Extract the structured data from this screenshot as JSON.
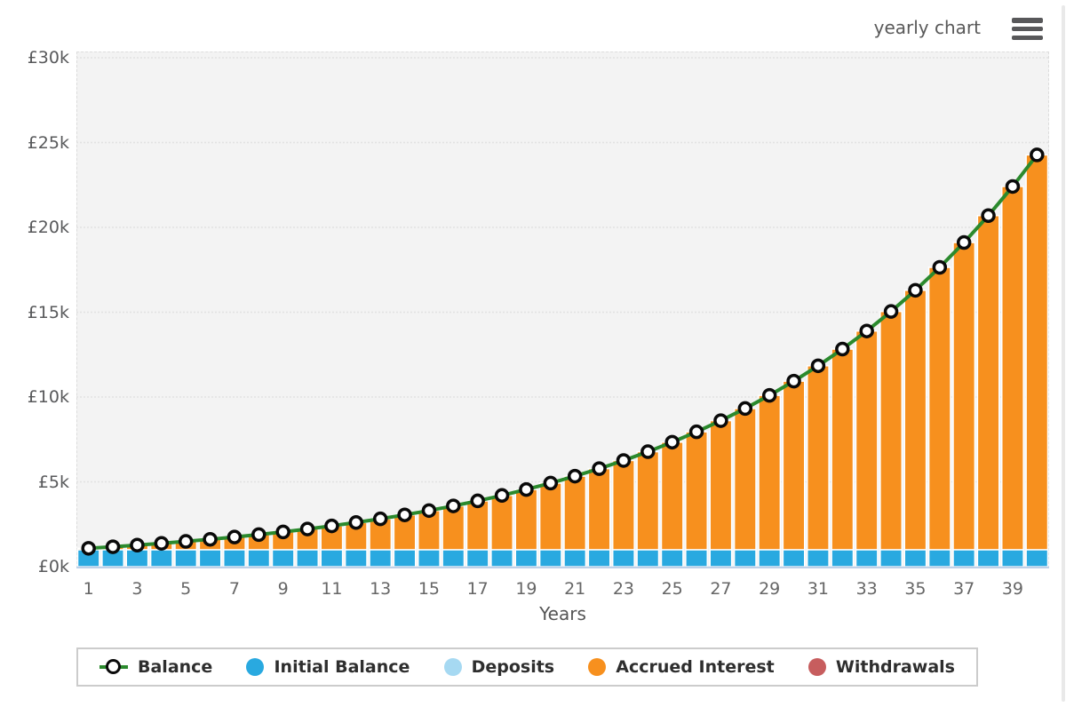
{
  "header": {
    "title": "yearly chart",
    "menu_icon": "hamburger-icon"
  },
  "colors": {
    "plot_background": "#f3f3f3",
    "grid_line": "#e2e2e2",
    "baseline": "#bed1e8",
    "bar_gap": "#ffffff",
    "initial_balance": "#29a9e0",
    "deposits": "#a6d9f2",
    "accrued_interest": "#f7901e",
    "withdrawals": "#c75d5e",
    "balance_line": "#2b8a2d",
    "marker_ring": "#0a0a0a",
    "marker_fill": "#ffffff"
  },
  "chart_data": {
    "type": "bar",
    "subtype": "stacked-columns-with-line",
    "title": "yearly chart",
    "xlabel": "Years",
    "ylabel": "",
    "ylim": [
      0,
      30000
    ],
    "grid": "horizontal-dashed",
    "legend_position": "bottom",
    "y_ticks": [
      0,
      5000,
      10000,
      15000,
      20000,
      25000,
      30000
    ],
    "y_tick_labels": [
      "£0k",
      "£5k",
      "£10k",
      "£15k",
      "£20k",
      "£25k",
      "£30k"
    ],
    "categories": [
      1,
      2,
      3,
      4,
      5,
      6,
      7,
      8,
      9,
      10,
      11,
      12,
      13,
      14,
      15,
      16,
      17,
      18,
      19,
      20,
      21,
      22,
      23,
      24,
      25,
      26,
      27,
      28,
      29,
      30,
      31,
      32,
      33,
      34,
      35,
      36,
      37,
      38,
      39,
      40
    ],
    "x_tick_labels": [
      "1",
      "3",
      "5",
      "7",
      "9",
      "11",
      "13",
      "15",
      "17",
      "19",
      "21",
      "23",
      "25",
      "27",
      "29",
      "31",
      "33",
      "35",
      "37",
      "39"
    ],
    "series": [
      {
        "name": "Initial Balance",
        "type": "column-stacked",
        "color": "#29a9e0",
        "values": [
          1000,
          1000,
          1000,
          1000,
          1000,
          1000,
          1000,
          1000,
          1000,
          1000,
          1000,
          1000,
          1000,
          1000,
          1000,
          1000,
          1000,
          1000,
          1000,
          1000,
          1000,
          1000,
          1000,
          1000,
          1000,
          1000,
          1000,
          1000,
          1000,
          1000,
          1000,
          1000,
          1000,
          1000,
          1000,
          1000,
          1000,
          1000,
          1000,
          1000
        ]
      },
      {
        "name": "Accrued Interest",
        "type": "column-stacked",
        "color": "#f7901e",
        "values": [
          83,
          173,
          270,
          376,
          490,
          613,
          747,
          892,
          1049,
          1220,
          1404,
          1603,
          1819,
          2053,
          2307,
          2581,
          2878,
          3200,
          3549,
          3926,
          4335,
          4778,
          5258,
          5777,
          6339,
          6949,
          7608,
          8323,
          9097,
          9935,
          10842,
          11825,
          12890,
          14043,
          15291,
          16643,
          18108,
          19694,
          21411,
          23271
        ]
      },
      {
        "name": "Balance",
        "type": "line",
        "color": "#2b8a2d",
        "marker": "open-circle",
        "values": [
          1083,
          1173,
          1270,
          1376,
          1490,
          1613,
          1747,
          1892,
          2049,
          2220,
          2404,
          2603,
          2819,
          3053,
          3307,
          3581,
          3878,
          4200,
          4549,
          4926,
          5335,
          5778,
          6258,
          6777,
          7339,
          7949,
          8608,
          9323,
          10097,
          10935,
          11842,
          12825,
          13890,
          15043,
          16291,
          17643,
          19108,
          20694,
          22411,
          24271
        ]
      }
    ],
    "legend": [
      {
        "label": "Balance",
        "swatch": "open-circle-on-line",
        "color": "#0a0a0a",
        "line_color": "#2b8a2d"
      },
      {
        "label": "Initial Balance",
        "swatch": "dot",
        "color": "#29a9e0"
      },
      {
        "label": "Deposits",
        "swatch": "dot",
        "color": "#a6d9f2"
      },
      {
        "label": "Accrued Interest",
        "swatch": "dot",
        "color": "#f7901e"
      },
      {
        "label": "Withdrawals",
        "swatch": "dot",
        "color": "#c75d5e"
      }
    ]
  }
}
